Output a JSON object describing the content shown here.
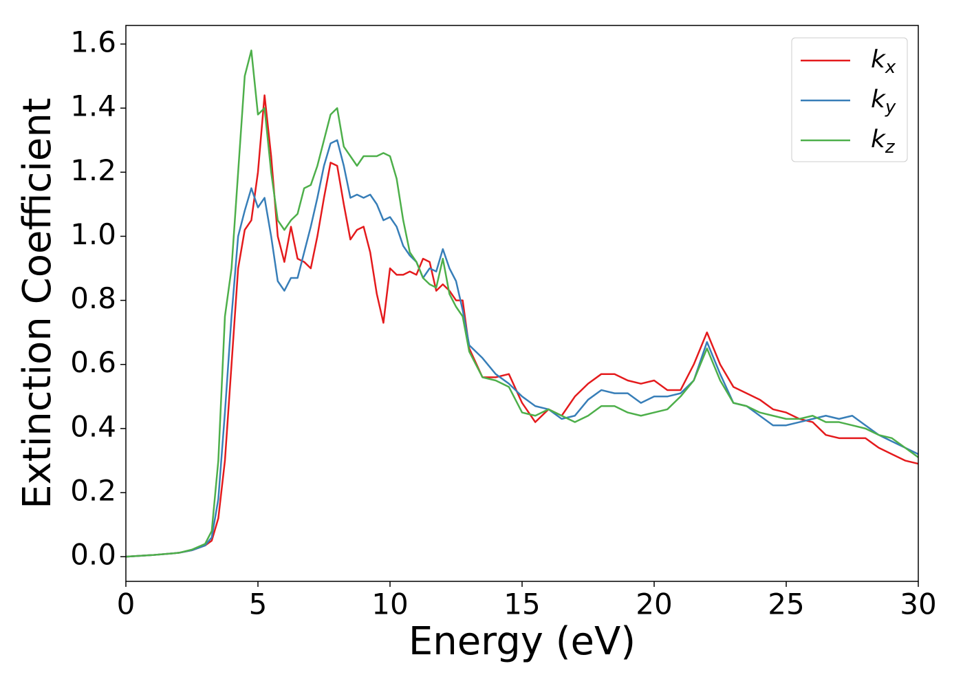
{
  "chart_data": {
    "type": "line",
    "xlabel": "Energy (eV)",
    "ylabel": "Extinction Coefficient",
    "x": [
      0,
      1,
      2,
      2.5,
      3,
      3.25,
      3.5,
      3.75,
      4,
      4.25,
      4.5,
      4.75,
      5,
      5.25,
      5.5,
      5.75,
      6,
      6.25,
      6.5,
      6.75,
      7,
      7.25,
      7.5,
      7.75,
      8,
      8.25,
      8.5,
      8.75,
      9,
      9.25,
      9.5,
      9.75,
      10,
      10.25,
      10.5,
      10.75,
      11,
      11.25,
      11.5,
      11.75,
      12,
      12.25,
      12.5,
      12.75,
      13,
      13.5,
      14,
      14.5,
      15,
      15.5,
      16,
      16.5,
      17,
      17.5,
      18,
      18.5,
      19,
      19.5,
      20,
      20.5,
      21,
      21.5,
      22,
      22.5,
      23,
      23.5,
      24,
      24.5,
      25,
      25.5,
      26,
      26.5,
      27,
      27.5,
      28,
      28.5,
      29,
      29.5,
      30
    ],
    "series": [
      {
        "name": "kx",
        "color": "#e41a1c",
        "values": [
          0,
          0.005,
          0.012,
          0.02,
          0.035,
          0.05,
          0.12,
          0.3,
          0.6,
          0.9,
          1.02,
          1.05,
          1.2,
          1.44,
          1.25,
          1.0,
          0.92,
          1.03,
          0.93,
          0.92,
          0.9,
          1.0,
          1.12,
          1.23,
          1.22,
          1.1,
          0.99,
          1.02,
          1.03,
          0.95,
          0.82,
          0.73,
          0.9,
          0.88,
          0.88,
          0.89,
          0.88,
          0.93,
          0.92,
          0.83,
          0.85,
          0.83,
          0.8,
          0.8,
          0.65,
          0.56,
          0.56,
          0.57,
          0.48,
          0.42,
          0.46,
          0.44,
          0.5,
          0.54,
          0.57,
          0.57,
          0.55,
          0.54,
          0.55,
          0.52,
          0.52,
          0.6,
          0.7,
          0.6,
          0.53,
          0.51,
          0.49,
          0.46,
          0.45,
          0.43,
          0.42,
          0.38,
          0.37,
          0.37,
          0.37,
          0.34,
          0.32,
          0.3,
          0.29
        ]
      },
      {
        "name": "ky",
        "color": "#377eb8",
        "values": [
          0,
          0.005,
          0.012,
          0.02,
          0.035,
          0.06,
          0.18,
          0.45,
          0.75,
          1.0,
          1.08,
          1.15,
          1.09,
          1.12,
          1.0,
          0.86,
          0.83,
          0.87,
          0.87,
          0.95,
          1.03,
          1.12,
          1.22,
          1.29,
          1.3,
          1.22,
          1.12,
          1.13,
          1.12,
          1.13,
          1.1,
          1.05,
          1.06,
          1.03,
          0.97,
          0.94,
          0.92,
          0.87,
          0.9,
          0.89,
          0.96,
          0.9,
          0.86,
          0.77,
          0.66,
          0.62,
          0.57,
          0.54,
          0.5,
          0.47,
          0.46,
          0.43,
          0.44,
          0.49,
          0.52,
          0.51,
          0.51,
          0.48,
          0.5,
          0.5,
          0.51,
          0.55,
          0.67,
          0.57,
          0.48,
          0.47,
          0.44,
          0.41,
          0.41,
          0.42,
          0.43,
          0.44,
          0.43,
          0.44,
          0.41,
          0.38,
          0.36,
          0.34,
          0.32
        ]
      },
      {
        "name": "kz",
        "color": "#4daf4a",
        "values": [
          0,
          0.005,
          0.012,
          0.022,
          0.04,
          0.08,
          0.3,
          0.75,
          0.9,
          1.2,
          1.5,
          1.58,
          1.38,
          1.4,
          1.2,
          1.05,
          1.02,
          1.05,
          1.07,
          1.15,
          1.16,
          1.22,
          1.3,
          1.38,
          1.4,
          1.28,
          1.25,
          1.22,
          1.25,
          1.25,
          1.25,
          1.26,
          1.25,
          1.18,
          1.05,
          0.95,
          0.92,
          0.87,
          0.85,
          0.84,
          0.93,
          0.82,
          0.78,
          0.75,
          0.64,
          0.56,
          0.55,
          0.53,
          0.45,
          0.44,
          0.46,
          0.44,
          0.42,
          0.44,
          0.47,
          0.47,
          0.45,
          0.44,
          0.45,
          0.46,
          0.5,
          0.55,
          0.65,
          0.55,
          0.48,
          0.47,
          0.45,
          0.44,
          0.43,
          0.43,
          0.44,
          0.42,
          0.42,
          0.41,
          0.4,
          0.38,
          0.37,
          0.34,
          0.31
        ]
      }
    ],
    "xlim": [
      0,
      30
    ],
    "xticks": [
      0,
      5,
      10,
      15,
      20,
      25,
      30
    ],
    "ylim": [
      -0.077,
      1.658
    ],
    "yticks": [
      {
        "value": 0,
        "label": "0.0"
      },
      0.2,
      0.4,
      0.6,
      0.8,
      {
        "value": 1,
        "label": "1.0"
      },
      1.2,
      1.4,
      1.6
    ],
    "legend": "upper right",
    "grid": false
  }
}
